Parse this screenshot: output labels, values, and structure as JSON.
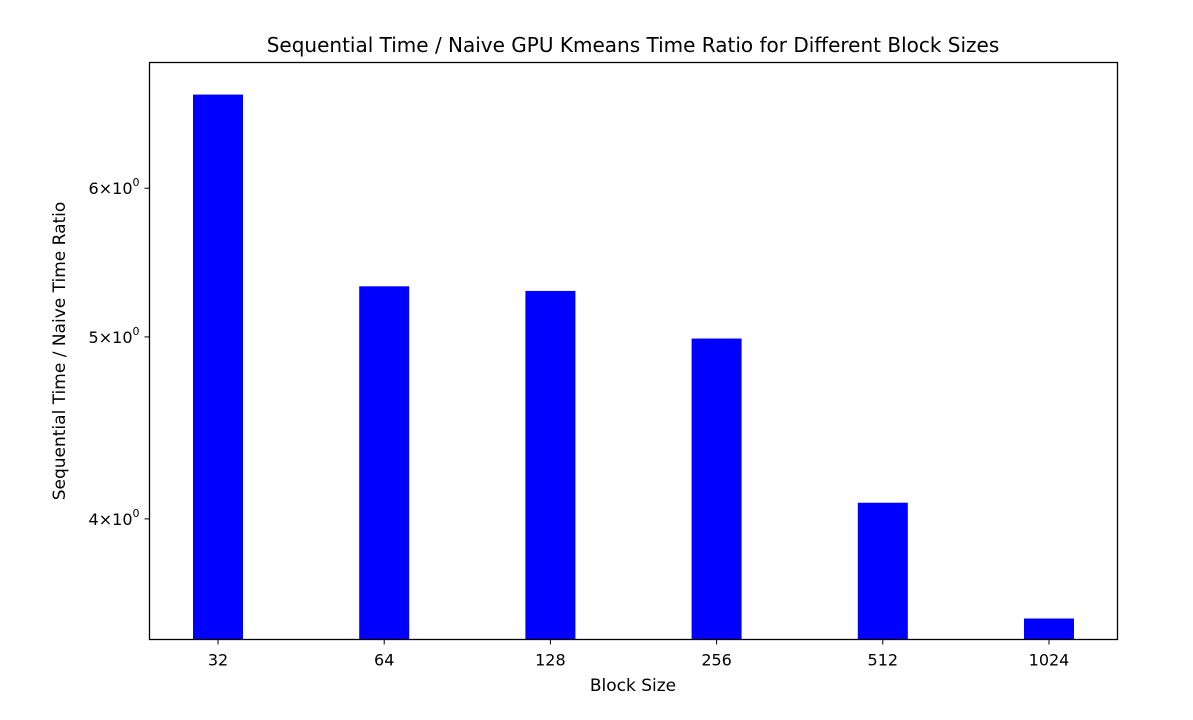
{
  "chart_data": {
    "type": "bar",
    "title": "Sequential Time / Naive GPU Kmeans Time Ratio for Different Block Sizes",
    "xlabel": "Block Size",
    "ylabel": "Sequential Time / Naive Time Ratio",
    "categories": [
      "32",
      "64",
      "128",
      "256",
      "512",
      "1024"
    ],
    "series": [
      {
        "values": [
          6.73,
          5.32,
          5.29,
          4.99,
          4.08,
          3.54
        ]
      }
    ],
    "yscale": "log",
    "ylim": [
      3.45,
      7.0
    ],
    "yticks": [
      {
        "value": 4,
        "base": "4",
        "exp": "0"
      },
      {
        "value": 5,
        "base": "5",
        "exp": "0"
      },
      {
        "value": 6,
        "base": "6",
        "exp": "0"
      }
    ],
    "grid": false,
    "legend": "none",
    "bar_color": "#0000ff"
  }
}
